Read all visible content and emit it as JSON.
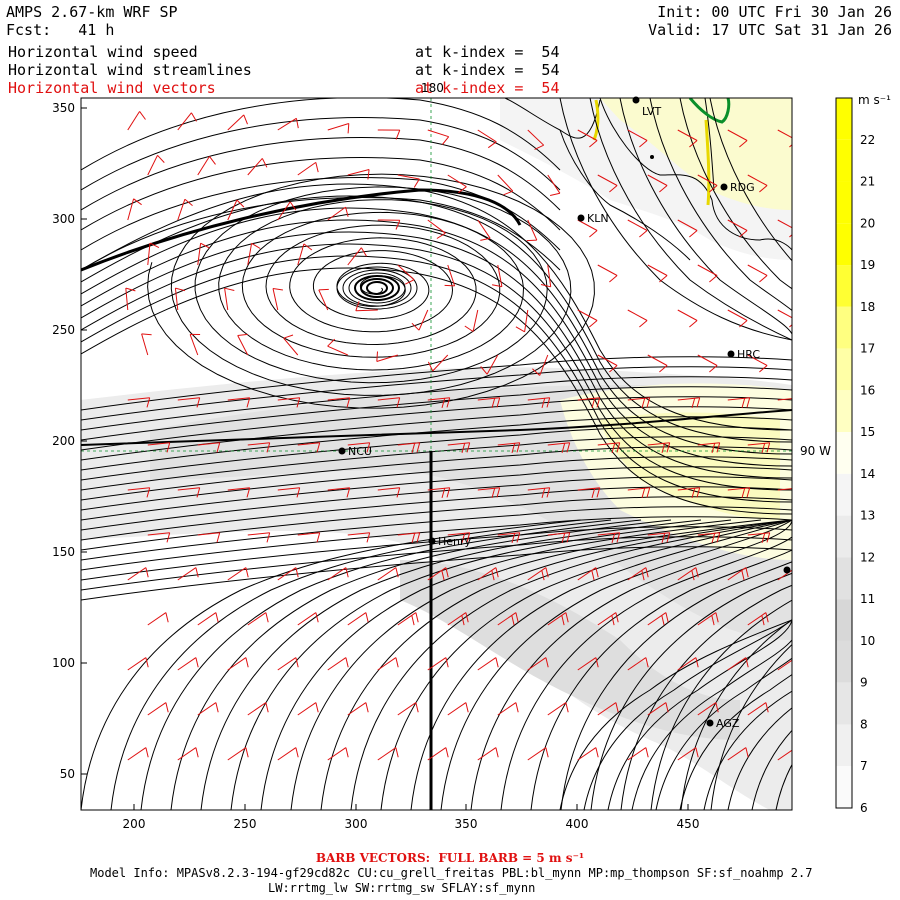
{
  "header": {
    "title": "AMPS 2.67-km WRF SP",
    "forecast": "Fcst:   41 h",
    "init": "Init: 00 UTC Fri 30 Jan 26",
    "valid": "Valid: 17 UTC Sat 31 Jan 26"
  },
  "fields": [
    {
      "name": "Horizontal wind speed",
      "level": "at k-index =  54",
      "color": "#000000"
    },
    {
      "name": "Horizontal wind streamlines",
      "level": "at k-index =  54",
      "color": "#000000"
    },
    {
      "name": "Horizontal wind vectors",
      "level": "at k-index =  54",
      "color": "#e01010"
    }
  ],
  "axes": {
    "x_ticks": [
      "200",
      "250",
      "300",
      "350",
      "400",
      "450"
    ],
    "y_ticks": [
      "350",
      "300",
      "250",
      "200",
      "150",
      "100",
      "50"
    ]
  },
  "grid_labels": {
    "lon_180": "180",
    "lon_90w": "90 W"
  },
  "stations": [
    {
      "id": "LVT",
      "label": "LVT"
    },
    {
      "id": "RDG",
      "label": "RDG"
    },
    {
      "id": "KLN",
      "label": "KLN"
    },
    {
      "id": "HRC",
      "label": "HRC"
    },
    {
      "id": "NCU",
      "label": "NCU"
    },
    {
      "id": "Henry",
      "label": "Henry"
    },
    {
      "id": "AGZ",
      "label": "AGZ"
    },
    {
      "id": "east-edge",
      "label": ""
    }
  ],
  "colorbar": {
    "units": "m s⁻¹",
    "levels": [
      "22",
      "21",
      "20",
      "19",
      "18",
      "17",
      "16",
      "15",
      "14",
      "13",
      "12",
      "11",
      "10",
      "9",
      "8",
      "7",
      "6"
    ],
    "colors": [
      "#ffff00",
      "#ffff00",
      "#ffff00",
      "#ffff00",
      "#ffff33",
      "#ffff80",
      "#ffffa6",
      "#ffffc2",
      "#fffff0",
      "#f5f5f5",
      "#ebebeb",
      "#e1e1e1",
      "#d7d7d7",
      "#dcdcdc",
      "#e6e6e6",
      "#f0f0f0",
      "#fafafa"
    ]
  },
  "footer": {
    "barb": "BARB VECTORS:  FULL BARB = 5 m s⁻¹",
    "model_info": "Model Info: MPASv8.2.3-194-gf29cd82c CU:cu_grell_freitas PBL:bl_mynn MP:mp_thompson SF:sf_noahmp 2.7",
    "model_info2": "LW:rrtmg_lw SW:rrtmg_sw SFLAY:sf_mynn"
  }
}
